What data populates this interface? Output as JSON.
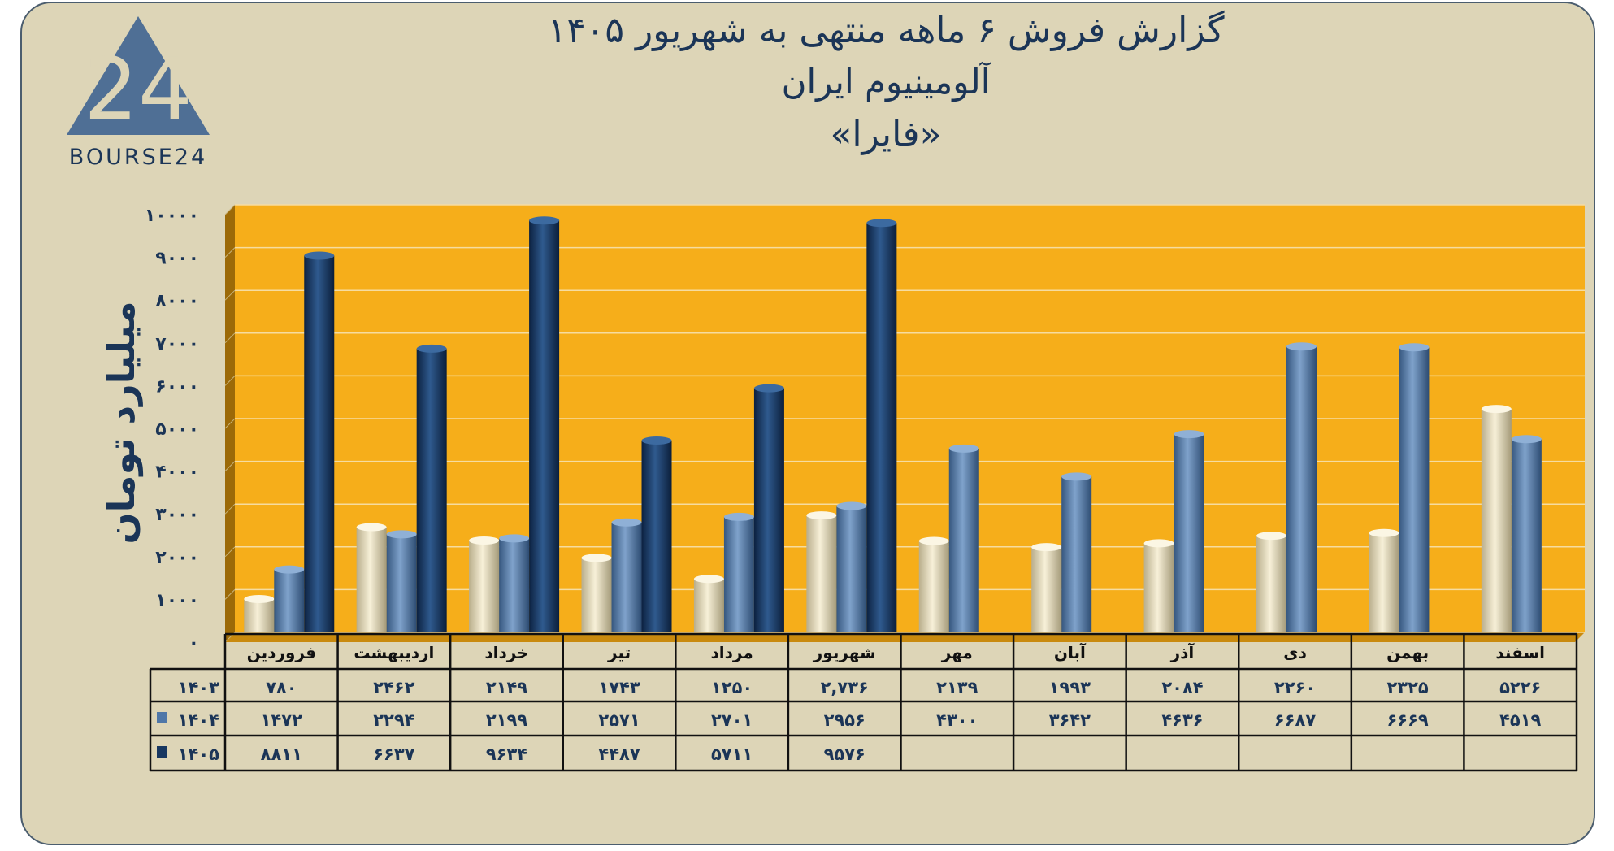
{
  "header": {
    "title_line1": "گزارش  فروش ۶ ماهه منتهی به شهریور ۱۴۰۵",
    "title_line2": "آلومینیوم ایران",
    "title_line3": "«فایرا»",
    "logo_text": "BOURSE24",
    "logo_digits": "24"
  },
  "colors": {
    "plot_bg": "#f6ae1a",
    "card_bg": "#ddd5b7",
    "series_1403": "#ece2c0",
    "series_1404": "#4f77a8",
    "series_1405": "#173761",
    "text": "#1b3557"
  },
  "chart_data": {
    "type": "bar",
    "title": "گزارش  فروش ۶ ماهه منتهی به شهریور ۱۴۰۵",
    "subtitle": "آلومینیوم ایران «فایرا»",
    "ylabel": "میلیارد تومان",
    "ylim": [
      0,
      10000
    ],
    "yticks": [
      0,
      1000,
      2000,
      3000,
      4000,
      5000,
      6000,
      7000,
      8000,
      9000,
      10000
    ],
    "ytick_labels": [
      "۰",
      "۱۰۰۰",
      "۲۰۰۰",
      "۳۰۰۰",
      "۴۰۰۰",
      "۵۰۰۰",
      "۶۰۰۰",
      "۷۰۰۰",
      "۸۰۰۰",
      "۹۰۰۰",
      "۱۰۰۰۰"
    ],
    "grid": true,
    "categories": [
      "فروردین",
      "اردیبهشت",
      "خرداد",
      "تیر",
      "مرداد",
      "شهریور",
      "مهر",
      "آبان",
      "آذر",
      "دی",
      "بهمن",
      "اسفند"
    ],
    "series": [
      {
        "name": "۱۴۰۳",
        "values": [
          780,
          2462,
          2149,
          1743,
          1250,
          2736,
          2139,
          1993,
          2084,
          2260,
          2325,
          5226
        ],
        "labels": [
          "۷۸۰",
          "۲۴۶۲",
          "۲۱۴۹",
          "۱۷۴۳",
          "۱۲۵۰",
          "۲,۷۳۶",
          "۲۱۳۹",
          "۱۹۹۳",
          "۲۰۸۴",
          "۲۲۶۰",
          "۲۳۲۵",
          "۵۲۲۶"
        ]
      },
      {
        "name": "۱۴۰۴",
        "values": [
          1472,
          2294,
          2199,
          2571,
          2701,
          2956,
          4300,
          3642,
          4636,
          6687,
          6669,
          4519
        ],
        "labels": [
          "۱۴۷۲",
          "۲۲۹۴",
          "۲۱۹۹",
          "۲۵۷۱",
          "۲۷۰۱",
          "۲۹۵۶",
          "۴۳۰۰",
          "۳۶۴۲",
          "۴۶۳۶",
          "۶۶۸۷",
          "۶۶۶۹",
          "۴۵۱۹"
        ]
      },
      {
        "name": "۱۴۰۵",
        "values": [
          8811,
          6637,
          9634,
          4487,
          5711,
          9576,
          null,
          null,
          null,
          null,
          null,
          null
        ],
        "labels": [
          "۸۸۱۱",
          "۶۶۳۷",
          "۹۶۳۴",
          "۴۴۸۷",
          "۵۷۱۱",
          "۹۵۷۶",
          "",
          "",
          "",
          "",
          "",
          ""
        ]
      }
    ]
  }
}
